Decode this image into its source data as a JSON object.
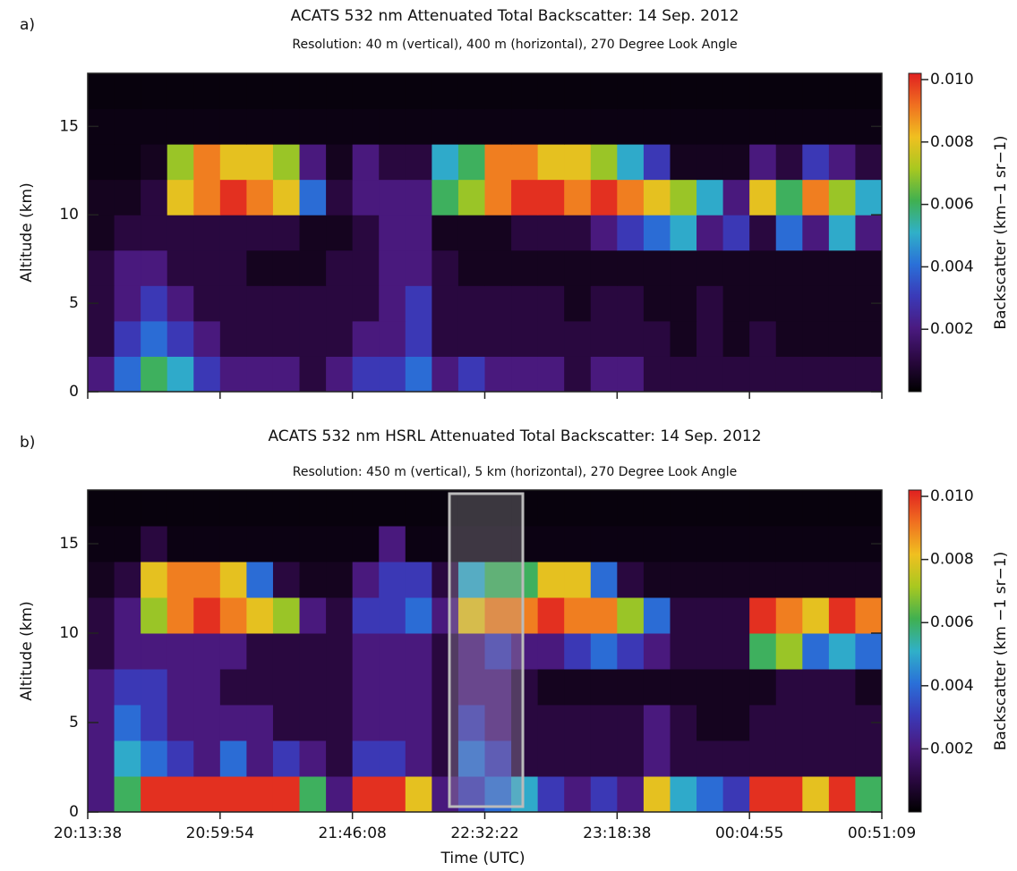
{
  "chart_data": [
    {
      "type": "heatmap",
      "panel_label": "a)",
      "title": "ACATS 532 nm Attenuated Total Backscatter: 14 Sep. 2012",
      "subtitle": "Resolution: 40 m (vertical), 400 m (horizontal), 270 Degree Look Angle",
      "ylabel": "Altitude (km)",
      "ylim": [
        0,
        18
      ],
      "yticks": [
        0,
        5,
        10,
        15
      ],
      "colorbar_label": "Backscatter (km−1 sr−1)",
      "clim": [
        0,
        0.0102
      ],
      "cticks": [
        0.002,
        0.004,
        0.006,
        0.008,
        {
          "value": 0.01,
          "label": "0.010"
        }
      ],
      "colormap": [
        "#000000",
        "#2a0840",
        "#4a1a80",
        "#3a3ab8",
        "#2a70d8",
        "#30b0c8",
        "#40b050",
        "#a8c820",
        "#f0c020",
        "#f07020",
        "#e02020"
      ],
      "z": [
        [
          0.002,
          0.004,
          0.006,
          0.005,
          0.003,
          0.002,
          0.002,
          0.002,
          0.001,
          0.002,
          0.003,
          0.003,
          0.004,
          0.002,
          0.003,
          0.002,
          0.002,
          0.002,
          0.001,
          0.002,
          0.002,
          0.001,
          0.001,
          0.001,
          0.001,
          0.001,
          0.001,
          0.001,
          0.001,
          0.001
        ],
        [
          0.001,
          0.003,
          0.004,
          0.003,
          0.002,
          0.001,
          0.001,
          0.001,
          0.001,
          0.001,
          0.002,
          0.002,
          0.003,
          0.001,
          0.001,
          0.001,
          0.001,
          0.001,
          0.001,
          0.001,
          0.001,
          0.001,
          0.0005,
          0.001,
          0.0005,
          0.001,
          0.0005,
          0.0005,
          0.0005,
          0.0005
        ],
        [
          0.001,
          0.002,
          0.003,
          0.002,
          0.001,
          0.001,
          0.001,
          0.001,
          0.001,
          0.001,
          0.001,
          0.002,
          0.003,
          0.001,
          0.001,
          0.001,
          0.001,
          0.001,
          0.0005,
          0.001,
          0.001,
          0.0005,
          0.0005,
          0.001,
          0.0005,
          0.0005,
          0.0005,
          0.0005,
          0.0005,
          0.0005
        ],
        [
          0.001,
          0.002,
          0.002,
          0.001,
          0.001,
          0.001,
          0.0005,
          0.0005,
          0.0005,
          0.001,
          0.001,
          0.002,
          0.002,
          0.001,
          0.0005,
          0.0005,
          0.0005,
          0.0005,
          0.0005,
          0.0005,
          0.0005,
          0.0005,
          0.0005,
          0.0005,
          0.0005,
          0.0005,
          0.0005,
          0.0005,
          0.0005,
          0.0005
        ],
        [
          0.0005,
          0.001,
          0.001,
          0.001,
          0.001,
          0.001,
          0.001,
          0.001,
          0.0005,
          0.0005,
          0.001,
          0.002,
          0.002,
          0.0005,
          0.0005,
          0.0005,
          0.001,
          0.001,
          0.001,
          0.002,
          0.003,
          0.004,
          0.005,
          0.002,
          0.003,
          0.001,
          0.004,
          0.002,
          0.005,
          0.002
        ],
        [
          0.0005,
          0.0005,
          0.001,
          0.008,
          0.009,
          0.01,
          0.009,
          0.008,
          0.004,
          0.001,
          0.002,
          0.002,
          0.002,
          0.006,
          0.007,
          0.009,
          0.01,
          0.01,
          0.009,
          0.01,
          0.009,
          0.008,
          0.007,
          0.005,
          0.002,
          0.008,
          0.006,
          0.009,
          0.007,
          0.005
        ],
        [
          0.0003,
          0.0003,
          0.0005,
          0.007,
          0.009,
          0.008,
          0.008,
          0.007,
          0.002,
          0.0005,
          0.002,
          0.001,
          0.001,
          0.005,
          0.006,
          0.009,
          0.009,
          0.008,
          0.008,
          0.007,
          0.005,
          0.003,
          0.0005,
          0.0005,
          0.0005,
          0.002,
          0.001,
          0.003,
          0.002,
          0.001
        ],
        [
          0.0003,
          0.0003,
          0.0003,
          0.0003,
          0.0003,
          0.0003,
          0.0003,
          0.0003,
          0.0003,
          0.0003,
          0.0003,
          0.0003,
          0.0003,
          0.0003,
          0.0003,
          0.0003,
          0.0003,
          0.0003,
          0.0003,
          0.0003,
          0.0003,
          0.0003,
          0.0003,
          0.0003,
          0.0003,
          0.0003,
          0.0003,
          0.0003,
          0.0003,
          0.0003
        ],
        [
          0.0002,
          0.0002,
          0.0002,
          0.0002,
          0.0002,
          0.0002,
          0.0002,
          0.0002,
          0.0002,
          0.0002,
          0.0002,
          0.0002,
          0.0002,
          0.0002,
          0.0002,
          0.0002,
          0.0002,
          0.0002,
          0.0002,
          0.0002,
          0.0002,
          0.0002,
          0.0002,
          0.0002,
          0.0002,
          0.0002,
          0.0002,
          0.0002,
          0.0002,
          0.0002
        ]
      ]
    },
    {
      "type": "heatmap",
      "panel_label": "b)",
      "title": "ACATS 532 nm HSRL Attenuated Total Backscatter: 14 Sep. 2012",
      "subtitle": "Resolution: 450 m (vertical), 5 km (horizontal), 270 Degree Look Angle",
      "ylabel": "Altitude (km)",
      "ylim": [
        0,
        18
      ],
      "yticks": [
        0,
        5,
        10,
        15
      ],
      "xlabel": "Time (UTC)",
      "xtick_labels": [
        "20:13:38",
        "20:59:54",
        "21:46:08",
        "22:32:22",
        "23:18:38",
        "00:04:55",
        "00:51:09"
      ],
      "colorbar_label": "Backscatter (km −1 sr−1)",
      "clim": [
        0,
        0.0102
      ],
      "cticks": [
        0.002,
        0.004,
        0.006,
        0.008,
        {
          "value": 0.01,
          "label": "0.010"
        }
      ],
      "colormap": [
        "#000000",
        "#2a0840",
        "#4a1a80",
        "#3a3ab8",
        "#2a70d8",
        "#30b0c8",
        "#40b050",
        "#a8c820",
        "#f0c020",
        "#f07020",
        "#e02020"
      ],
      "z": [
        [
          0.002,
          0.006,
          0.01,
          0.01,
          0.01,
          0.01,
          0.01,
          0.01,
          0.006,
          0.002,
          0.01,
          0.01,
          0.008,
          0.002,
          0.003,
          0.004,
          0.005,
          0.003,
          0.002,
          0.003,
          0.002,
          0.008,
          0.005,
          0.004,
          0.003,
          0.01,
          0.01,
          0.008,
          0.01,
          0.006
        ],
        [
          0.002,
          0.005,
          0.004,
          0.003,
          0.002,
          0.004,
          0.002,
          0.003,
          0.002,
          0.001,
          0.003,
          0.003,
          0.002,
          0.001,
          0.004,
          0.003,
          0.001,
          0.001,
          0.001,
          0.001,
          0.001,
          0.002,
          0.001,
          0.001,
          0.001,
          0.001,
          0.001,
          0.001,
          0.001,
          0.001
        ],
        [
          0.002,
          0.004,
          0.003,
          0.002,
          0.002,
          0.002,
          0.002,
          0.001,
          0.001,
          0.001,
          0.002,
          0.002,
          0.002,
          0.001,
          0.003,
          0.002,
          0.001,
          0.001,
          0.001,
          0.001,
          0.001,
          0.002,
          0.001,
          0.0005,
          0.0005,
          0.001,
          0.001,
          0.001,
          0.001,
          0.001
        ],
        [
          0.002,
          0.003,
          0.003,
          0.002,
          0.002,
          0.001,
          0.001,
          0.001,
          0.001,
          0.001,
          0.002,
          0.002,
          0.002,
          0.001,
          0.002,
          0.002,
          0.001,
          0.0005,
          0.0005,
          0.0005,
          0.0005,
          0.0005,
          0.0005,
          0.0005,
          0.0005,
          0.0005,
          0.001,
          0.001,
          0.001,
          0.0005
        ],
        [
          0.001,
          0.002,
          0.002,
          0.002,
          0.002,
          0.002,
          0.001,
          0.001,
          0.001,
          0.001,
          0.002,
          0.002,
          0.002,
          0.001,
          0.002,
          0.003,
          0.002,
          0.002,
          0.003,
          0.004,
          0.003,
          0.002,
          0.001,
          0.001,
          0.001,
          0.006,
          0.007,
          0.004,
          0.005,
          0.004
        ],
        [
          0.001,
          0.002,
          0.007,
          0.009,
          0.01,
          0.009,
          0.008,
          0.007,
          0.002,
          0.001,
          0.003,
          0.003,
          0.004,
          0.002,
          0.008,
          0.009,
          0.009,
          0.01,
          0.009,
          0.009,
          0.007,
          0.004,
          0.001,
          0.001,
          0.001,
          0.01,
          0.009,
          0.008,
          0.01,
          0.009
        ],
        [
          0.0005,
          0.001,
          0.008,
          0.009,
          0.009,
          0.008,
          0.004,
          0.001,
          0.0005,
          0.0005,
          0.002,
          0.003,
          0.003,
          0.001,
          0.005,
          0.006,
          0.006,
          0.008,
          0.008,
          0.004,
          0.001,
          0.0005,
          0.0005,
          0.0005,
          0.0005,
          0.0005,
          0.0005,
          0.0005,
          0.0005,
          0.0005
        ],
        [
          0.0003,
          0.0003,
          0.001,
          0.0003,
          0.0003,
          0.0003,
          0.0003,
          0.0003,
          0.0003,
          0.0003,
          0.0003,
          0.002,
          0.0003,
          0.0003,
          0.0003,
          0.0003,
          0.0003,
          0.0003,
          0.0003,
          0.0003,
          0.0003,
          0.0003,
          0.0003,
          0.0003,
          0.0003,
          0.0003,
          0.0003,
          0.0003,
          0.0003,
          0.0003
        ],
        [
          0.0002,
          0.0002,
          0.0002,
          0.0002,
          0.0002,
          0.0002,
          0.0002,
          0.0002,
          0.0002,
          0.0002,
          0.0002,
          0.0002,
          0.0002,
          0.0002,
          0.0002,
          0.0002,
          0.0002,
          0.0002,
          0.0002,
          0.0002,
          0.0002,
          0.0002,
          0.0002,
          0.0002,
          0.0002,
          0.0002,
          0.0002,
          0.0002,
          0.0002,
          0.0002
        ]
      ]
    }
  ]
}
